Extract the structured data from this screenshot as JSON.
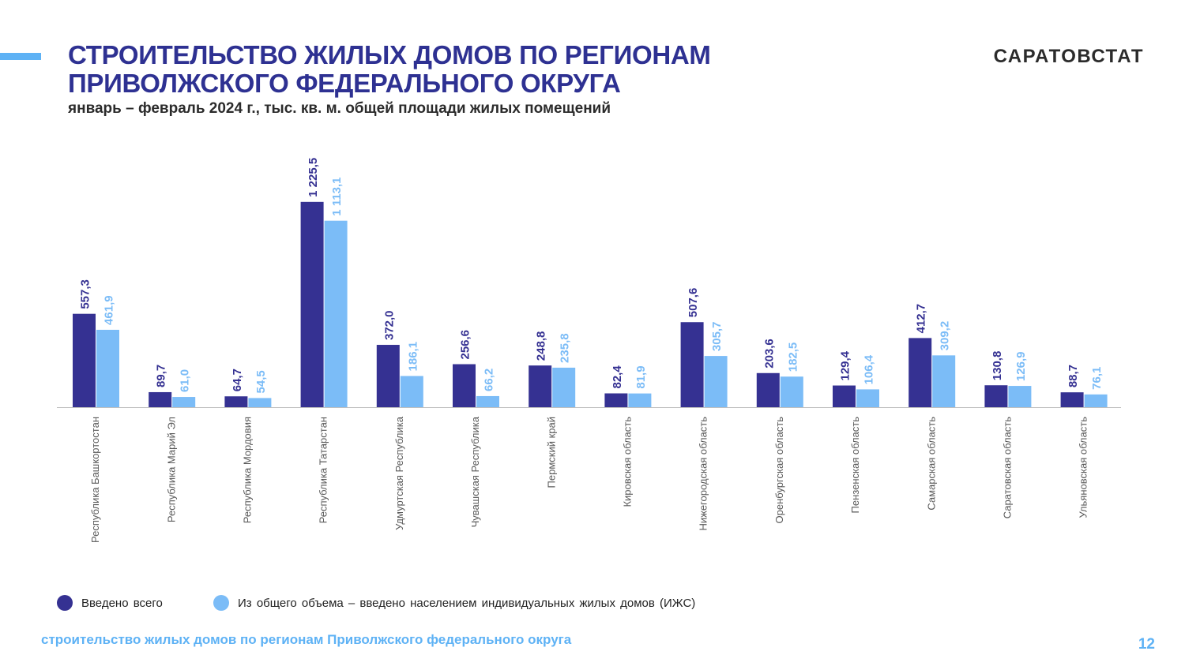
{
  "header": {
    "title_line1": "СТРОИТЕЛЬСТВО ЖИЛЫХ ДОМОВ ПО РЕГИОНАМ",
    "title_line2": "ПРИВОЛЖСКОГО ФЕДЕРАЛЬНОГО ОКРУГА",
    "subtitle": "январь – февраль 2024 г., тыс. кв. м. общей площади жилых помещений",
    "brand": "САРАТОВСТАТ"
  },
  "footer": {
    "text": "строительство жилых домов по регионам Приволжского федерального округа",
    "page": "12"
  },
  "colors": {
    "accent": "#5eb2f5",
    "title": "#2e3192",
    "series_total": "#353192",
    "series_izhs": "#7bbcf7"
  },
  "chart_data": {
    "type": "bar",
    "title": "СТРОИТЕЛЬСТВО ЖИЛЫХ ДОМОВ ПО РЕГИОНАМ ПРИВОЛЖСКОГО ФЕДЕРАЛЬНОГО ОКРУГА",
    "subtitle": "январь – февраль 2024 г., тыс. кв. м. общей площади жилых помещений",
    "xlabel": "",
    "ylabel": "",
    "ylim": [
      0,
      1400
    ],
    "grid": false,
    "legend_position": "bottom-left",
    "label_orientation": "vertical",
    "categories": [
      "Республика Башкортостан",
      "Республика Марий Эл",
      "Республика Мордовия",
      "Республика Татарстан",
      "Удмуртская Республика",
      "Чувашская Республика",
      "Пермский край",
      "Кировская область",
      "Нижегородская область",
      "Оренбургская область",
      "Пензенская область",
      "Самарская область",
      "Саратовская область",
      "Ульяновская область"
    ],
    "series": [
      {
        "name": "Введено всего",
        "color": "#353192",
        "values": [
          557.3,
          89.7,
          64.7,
          1225.5,
          372.0,
          256.6,
          248.8,
          82.4,
          507.6,
          203.6,
          129.4,
          412.7,
          130.8,
          88.7
        ],
        "labels": [
          "557,3",
          "89,7",
          "64,7",
          "1 225,5",
          "372,0",
          "256,6",
          "248,8",
          "82,4",
          "507,6",
          "203,6",
          "129,4",
          "412,7",
          "130,8",
          "88,7"
        ]
      },
      {
        "name": "Из общего объема – введено  населением  индивидуальных  жилых  домов (ИЖС)",
        "color": "#7bbcf7",
        "values": [
          461.9,
          61.0,
          54.5,
          1113.1,
          186.1,
          66.2,
          235.8,
          81.9,
          305.7,
          182.5,
          106.4,
          309.2,
          126.9,
          76.1
        ],
        "labels": [
          "461,9",
          "61,0",
          "54,5",
          "1 113,1",
          "186,1",
          "66,2",
          "235,8",
          "81,9",
          "305,7",
          "182,5",
          "106,4",
          "309,2",
          "126,9",
          "76,1"
        ]
      }
    ]
  }
}
